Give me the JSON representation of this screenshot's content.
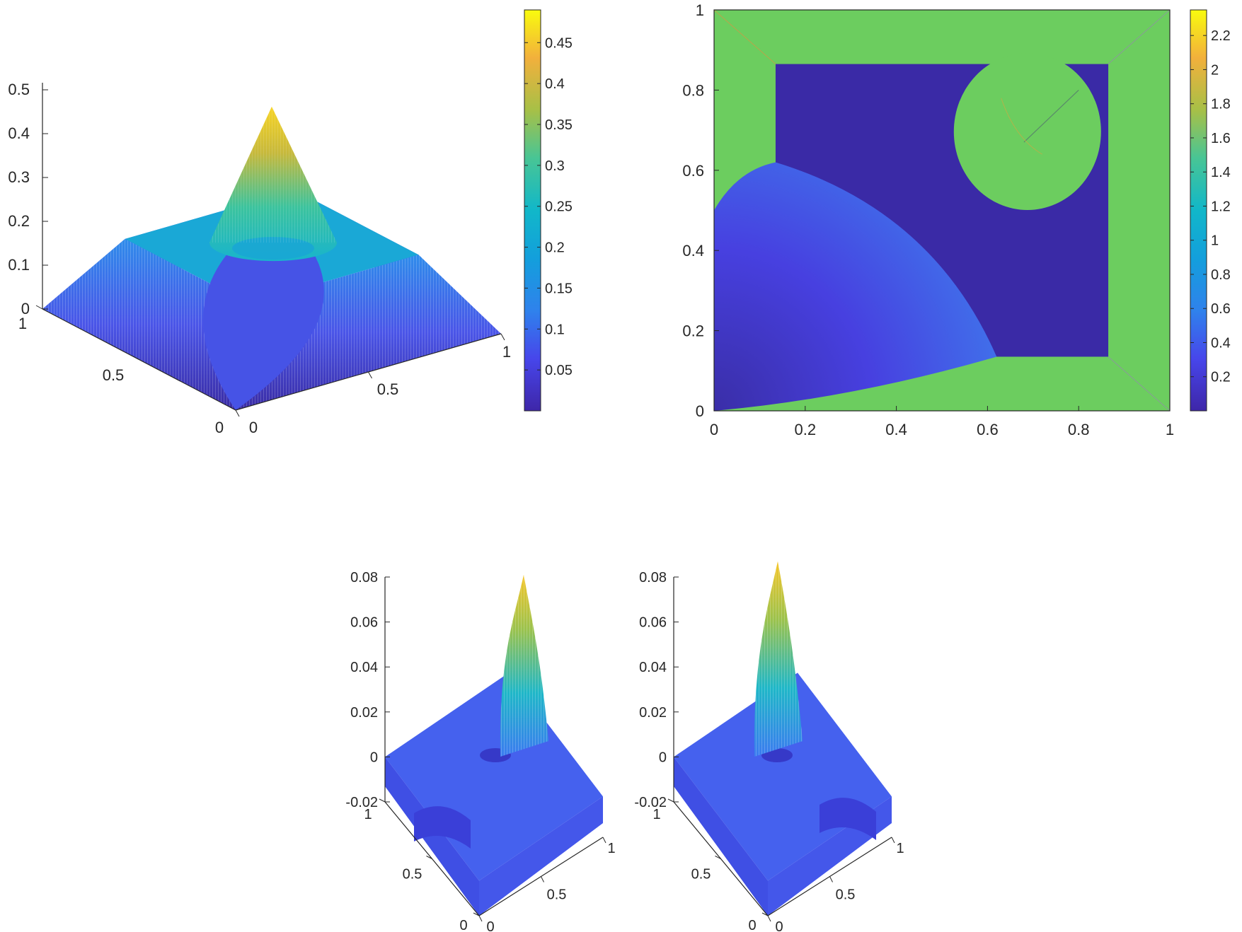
{
  "chart_data": [
    {
      "type": "surface3d",
      "panel": "top-left",
      "z_ticks": [
        "0",
        "0.1",
        "0.2",
        "0.3",
        "0.4",
        "0.5"
      ],
      "zlim": [
        0,
        0.5
      ],
      "x_ticks": [
        "0",
        "0.5",
        "1"
      ],
      "y_ticks": [
        "0",
        "0.5",
        "1"
      ],
      "xlim": [
        0,
        1
      ],
      "ylim": [
        0,
        1
      ],
      "description_values": {
        "peak": 0.49,
        "plateau": 0.17,
        "corner": 0
      },
      "colorbar": {
        "ticks": [
          "0.05",
          "0.1",
          "0.15",
          "0.2",
          "0.25",
          "0.3",
          "0.35",
          "0.4",
          "0.45"
        ],
        "range": [
          0.0,
          0.49
        ],
        "colormap": "parula",
        "placement": "right"
      }
    },
    {
      "type": "heatmap",
      "panel": "top-right",
      "x_ticks": [
        "0",
        "0.2",
        "0.4",
        "0.6",
        "0.8",
        "1"
      ],
      "y_ticks": [
        "0",
        "0.2",
        "0.4",
        "0.6",
        "0.8",
        "1"
      ],
      "xlim": [
        0,
        1
      ],
      "ylim": [
        0,
        1
      ],
      "regions": {
        "outer_frame_value": 1.45,
        "inner_square": {
          "x": [
            0.135,
            0.865
          ],
          "y": [
            0.135,
            0.865
          ],
          "value": 0.05
        },
        "quarter_disk": {
          "center": [
            0,
            0
          ],
          "radius": 0.63,
          "value_range": [
            0.1,
            0.7
          ]
        },
        "circle": {
          "center": [
            0.7,
            0.7
          ],
          "radius": 0.17,
          "value": 1.45
        }
      },
      "colorbar": {
        "ticks": [
          "0.2",
          "0.4",
          "0.6",
          "0.8",
          "1",
          "1.2",
          "1.4",
          "1.6",
          "1.8",
          "2",
          "2.2"
        ],
        "range": [
          0.0,
          2.35
        ],
        "colormap": "parula",
        "placement": "right"
      }
    },
    {
      "type": "surface3d",
      "panel": "bottom-left",
      "z_ticks": [
        "-0.02",
        "0",
        "0.02",
        "0.04",
        "0.06",
        "0.08"
      ],
      "zlim": [
        -0.02,
        0.08
      ],
      "x_ticks": [
        "0",
        "0.5",
        "1"
      ],
      "y_ticks": [
        "0",
        "0.5",
        "1"
      ],
      "xlim": [
        0,
        1
      ],
      "ylim": [
        0,
        1
      ]
    },
    {
      "type": "surface3d",
      "panel": "bottom-right",
      "z_ticks": [
        "-0.02",
        "0",
        "0.02",
        "0.04",
        "0.06",
        "0.08"
      ],
      "zlim": [
        -0.02,
        0.08
      ],
      "x_ticks": [
        "0",
        "0.5",
        "1"
      ],
      "y_ticks": [
        "0",
        "0.5",
        "1"
      ],
      "xlim": [
        0,
        1
      ],
      "ylim": [
        0,
        1
      ]
    }
  ],
  "colors": {
    "parula_low": "#3e26a8",
    "parula_blue": "#2f82ec",
    "parula_cyan": "#11b7c9",
    "parula_green": "#6ccd5f",
    "parula_orange": "#f2b03c",
    "parula_yellow": "#f9fb0e",
    "axis": "#262626"
  }
}
